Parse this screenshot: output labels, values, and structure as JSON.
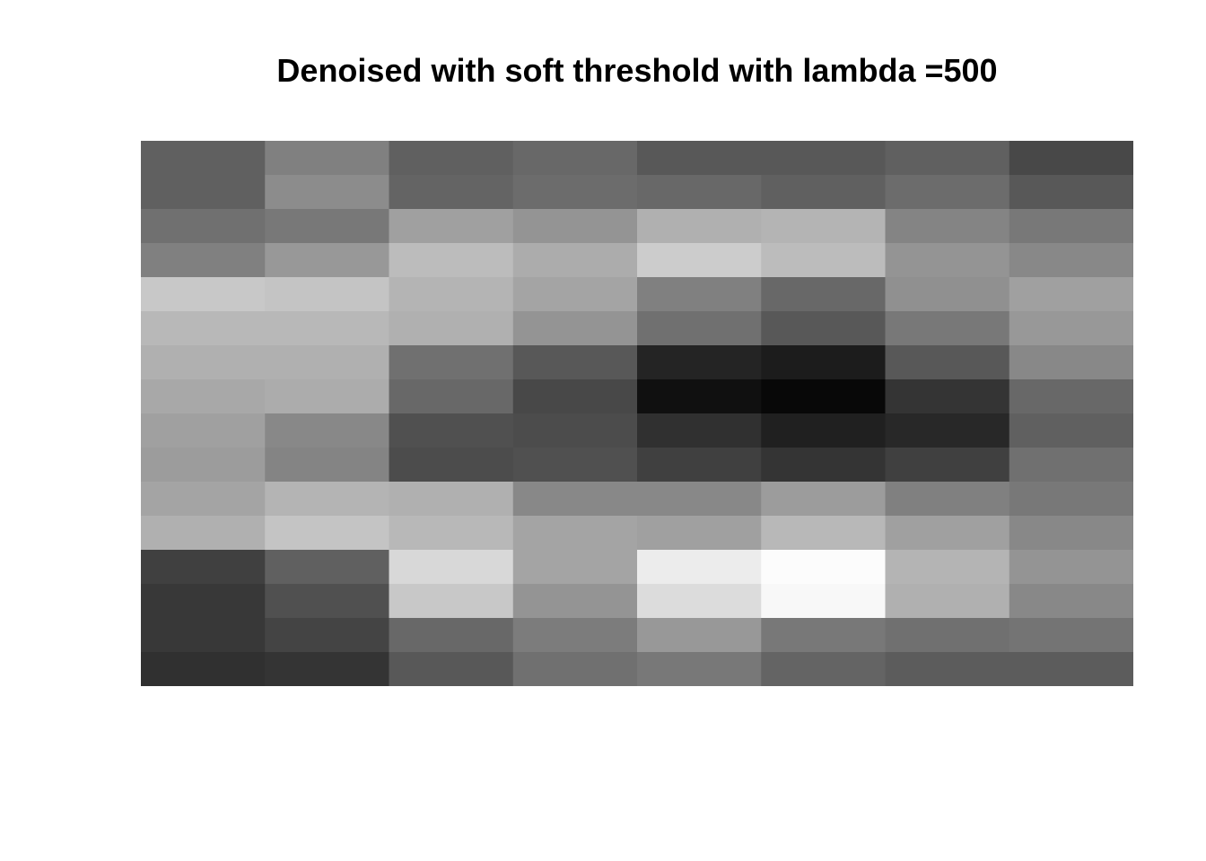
{
  "title": "Denoised with soft threshold with lambda =500",
  "image": {
    "rows": 16,
    "cols": 16,
    "colormap": "gray",
    "pixels": [
      [
        96,
        96,
        128,
        128,
        96,
        96,
        104,
        104,
        88,
        88,
        88,
        88,
        96,
        96,
        72,
        72
      ],
      [
        96,
        96,
        140,
        140,
        100,
        100,
        108,
        108,
        104,
        104,
        96,
        96,
        108,
        108,
        88,
        88
      ],
      [
        112,
        112,
        120,
        120,
        160,
        160,
        148,
        148,
        176,
        176,
        180,
        180,
        132,
        132,
        120,
        120
      ],
      [
        128,
        128,
        152,
        152,
        188,
        188,
        172,
        172,
        204,
        204,
        188,
        188,
        148,
        148,
        136,
        136
      ],
      [
        200,
        200,
        196,
        196,
        180,
        180,
        164,
        164,
        128,
        128,
        104,
        104,
        144,
        144,
        160,
        160
      ],
      [
        184,
        184,
        184,
        184,
        176,
        176,
        148,
        148,
        112,
        112,
        88,
        88,
        120,
        120,
        152,
        152
      ],
      [
        176,
        176,
        176,
        176,
        112,
        112,
        88,
        88,
        36,
        36,
        28,
        28,
        88,
        88,
        136,
        136
      ],
      [
        168,
        168,
        172,
        172,
        104,
        104,
        72,
        72,
        16,
        16,
        8,
        8,
        52,
        52,
        104,
        104
      ],
      [
        160,
        160,
        136,
        136,
        80,
        80,
        76,
        76,
        48,
        48,
        32,
        32,
        40,
        40,
        96,
        96
      ],
      [
        156,
        156,
        132,
        132,
        76,
        76,
        80,
        80,
        64,
        64,
        52,
        52,
        64,
        64,
        112,
        112
      ],
      [
        164,
        164,
        180,
        180,
        176,
        176,
        136,
        136,
        136,
        136,
        156,
        156,
        128,
        128,
        120,
        120
      ],
      [
        176,
        176,
        196,
        196,
        184,
        184,
        164,
        164,
        160,
        160,
        184,
        184,
        160,
        160,
        136,
        136
      ],
      [
        64,
        64,
        96,
        96,
        216,
        216,
        164,
        164,
        236,
        236,
        252,
        252,
        180,
        180,
        148,
        148
      ],
      [
        56,
        56,
        80,
        80,
        200,
        200,
        148,
        148,
        220,
        220,
        248,
        248,
        176,
        176,
        136,
        136
      ],
      [
        56,
        56,
        68,
        68,
        104,
        104,
        124,
        124,
        152,
        152,
        120,
        120,
        112,
        112,
        116,
        116
      ],
      [
        48,
        48,
        52,
        52,
        88,
        88,
        112,
        112,
        120,
        120,
        100,
        100,
        92,
        92,
        92,
        92
      ]
    ]
  }
}
